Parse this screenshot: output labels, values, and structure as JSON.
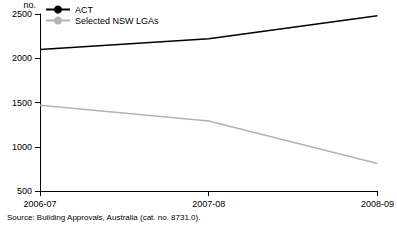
{
  "chart_data": {
    "type": "line",
    "ylabel": "no.",
    "source": "Source: Building Approvals, Australia (cat. no. 8731.0).",
    "categories": [
      "2006-07",
      "2007-08",
      "2008-09"
    ],
    "series": [
      {
        "name": "ACT",
        "color": "#000000",
        "values": [
          2100,
          2220,
          2480
        ]
      },
      {
        "name": "Selected NSW LGAs",
        "color": "#b3b3b3",
        "values": [
          1470,
          1290,
          810
        ]
      }
    ],
    "ylim": [
      500,
      2500
    ],
    "yticks": [
      500,
      1000,
      1500,
      2000,
      2500
    ],
    "grid": false,
    "legend": "top-left"
  }
}
